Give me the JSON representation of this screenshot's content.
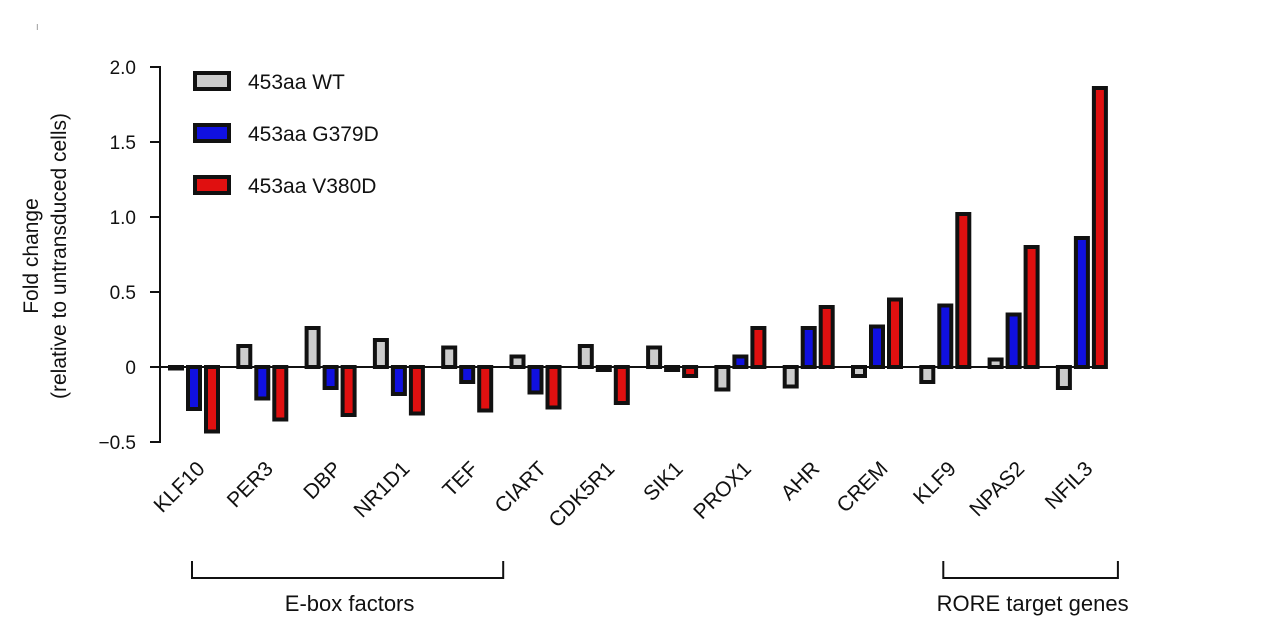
{
  "chart_data": {
    "type": "bar",
    "ylabel_line1": "Fold change",
    "ylabel_line2": "(relative to untransduced cells)",
    "ylim": [
      -0.5,
      2.0
    ],
    "yticks": [
      {
        "value": 2.0,
        "label": "2.0"
      },
      {
        "value": 1.5,
        "label": "1.5"
      },
      {
        "value": 1.0,
        "label": "1.0"
      },
      {
        "value": 0.5,
        "label": "0.5"
      },
      {
        "value": 0,
        "label": "0"
      },
      {
        "value": -0.5,
        "label": "−0.5"
      }
    ],
    "categories": [
      "KLF10",
      "PER3",
      "DBP",
      "NR1D1",
      "TEF",
      "CIART",
      "CDK5R1",
      "SIK1",
      "PROX1",
      "AHR",
      "CREM",
      "KLF9",
      "NPAS2",
      "NFIL3"
    ],
    "series": [
      {
        "name": "453aa WT",
        "color": "#cccccc",
        "values": [
          -0.01,
          0.14,
          0.26,
          0.18,
          0.13,
          0.07,
          0.14,
          0.13,
          -0.15,
          -0.13,
          -0.06,
          -0.1,
          0.05,
          -0.14
        ]
      },
      {
        "name": "453aa G379D",
        "color": "#1010e0",
        "values": [
          -0.28,
          -0.21,
          -0.14,
          -0.18,
          -0.1,
          -0.17,
          -0.02,
          -0.02,
          0.07,
          0.26,
          0.27,
          0.41,
          0.35,
          0.86
        ]
      },
      {
        "name": "453aa V380D",
        "color": "#e01010",
        "values": [
          -0.43,
          -0.35,
          -0.32,
          -0.31,
          -0.29,
          -0.27,
          -0.24,
          -0.06,
          0.26,
          0.4,
          0.45,
          1.02,
          0.8,
          1.86
        ]
      }
    ],
    "groups": [
      {
        "label": "E-box factors",
        "from": "KLF10",
        "to": "TEF"
      },
      {
        "label": "RORE target genes",
        "from": "KLF9",
        "to": "NFIL3"
      }
    ],
    "legend_position": "top-left"
  }
}
